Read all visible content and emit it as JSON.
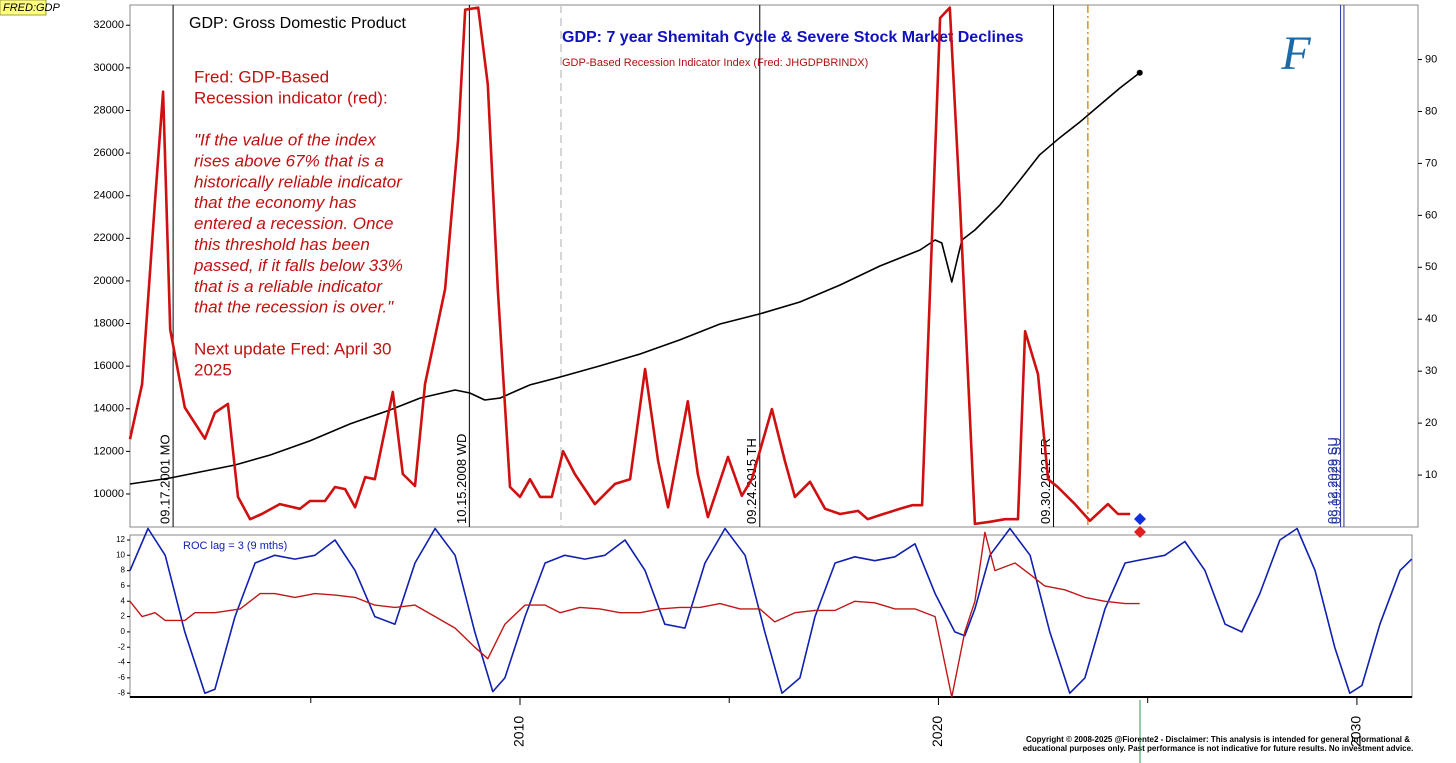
{
  "badge": "FRED:GDP",
  "logo": "F",
  "copyright": [
    "Copyright © 2008-2025 @Fiorente2 - Disclaimer: This analysis is intended for general informational &",
    "educational purposes only. Past performance is not indicative for future results. No investment advice."
  ],
  "chart_data": [
    {
      "type": "line",
      "title": "GDP: 7 year Shemitah Cycle & Severe Stock Market Declines",
      "xlim": [
        2000.68,
        2031.46
      ],
      "ylim": [
        8450,
        32950
      ],
      "yticks": [
        10000,
        12000,
        14000,
        16000,
        18000,
        20000,
        22000,
        24000,
        26000,
        28000,
        30000,
        32000
      ],
      "y2lim": [
        0,
        100.5
      ],
      "y2ticks": [
        10,
        20,
        30,
        40,
        50,
        60,
        70,
        80,
        90
      ],
      "series": [
        {
          "name": "GDP: Gross Domestic Product",
          "color": "#000000",
          "axis": "y",
          "x": [
            2000.68,
            2001.64,
            2002.35,
            2003.19,
            2004.03,
            2004.98,
            2005.94,
            2006.89,
            2007.61,
            2008.45,
            2008.8,
            2009.16,
            2009.52,
            2010.24,
            2010.96,
            2011.91,
            2012.87,
            2013.82,
            2014.78,
            2015.73,
            2016.69,
            2017.65,
            2018.6,
            2019.56,
            2019.92,
            2020.08,
            2020.32,
            2020.56,
            2020.87,
            2021.47,
            2021.95,
            2022.42,
            2022.9,
            2023.38,
            2023.86,
            2024.34,
            2024.81
          ],
          "values": [
            10470,
            10750,
            11030,
            11360,
            11830,
            12490,
            13290,
            13940,
            14500,
            14880,
            14740,
            14410,
            14500,
            15120,
            15490,
            16010,
            16570,
            17230,
            17980,
            18450,
            19010,
            19810,
            20700,
            21450,
            21920,
            21780,
            19950,
            21920,
            22390,
            23570,
            24740,
            25920,
            26720,
            27460,
            28260,
            29060,
            29770
          ]
        },
        {
          "name": "GDP-Based Recession Indicator Index (Fred: JHGDPBRINDX)",
          "color": "#d01010",
          "axis": "y2",
          "x": [
            2000.68,
            2000.97,
            2001.28,
            2001.47,
            2001.64,
            2001.99,
            2002.47,
            2002.71,
            2003.02,
            2003.26,
            2003.55,
            2003.83,
            2004.26,
            2004.74,
            2004.98,
            2005.34,
            2005.58,
            2005.82,
            2006.06,
            2006.3,
            2006.53,
            2006.96,
            2007.2,
            2007.49,
            2007.73,
            2008.21,
            2008.52,
            2008.69,
            2009.0,
            2009.23,
            2009.47,
            2009.76,
            2010.0,
            2010.24,
            2010.48,
            2010.76,
            2011.03,
            2011.31,
            2011.79,
            2012.27,
            2012.63,
            2012.99,
            2013.3,
            2013.54,
            2014.01,
            2014.25,
            2014.49,
            2014.97,
            2015.3,
            2015.54,
            2016.02,
            2016.33,
            2016.57,
            2016.93,
            2017.29,
            2017.65,
            2018.08,
            2018.31,
            2018.6,
            2019.08,
            2019.37,
            2019.61,
            2020.04,
            2020.27,
            2020.51,
            2020.87,
            2021.23,
            2021.59,
            2021.9,
            2022.07,
            2022.38,
            2022.62,
            2022.85,
            2023.26,
            2023.62,
            2024.05,
            2024.29,
            2024.58
          ],
          "values": [
            16.9,
            27.5,
            63,
            83.8,
            38,
            23,
            17,
            22,
            23.7,
            5.8,
            1.5,
            2.5,
            4.4,
            3.5,
            5,
            5,
            7.7,
            7.3,
            3.8,
            9.6,
            9.2,
            26,
            10.2,
            7.9,
            27.5,
            45.8,
            74.6,
            99.6,
            100,
            85.2,
            45.8,
            7.7,
            5.8,
            9.2,
            5.8,
            5.8,
            14.6,
            10.2,
            4.4,
            8.3,
            9.2,
            30.4,
            12.7,
            3.8,
            24.2,
            10.2,
            1.9,
            13.5,
            6,
            9.2,
            22.7,
            12.7,
            5.8,
            8.7,
            3.5,
            2.5,
            3.1,
            1.5,
            2.3,
            3.5,
            4.2,
            4.2,
            98,
            100,
            63,
            0.6,
            1,
            1.5,
            1.5,
            37.7,
            29.4,
            9.2,
            7.7,
            4.4,
            1.2,
            4.4,
            2.5,
            2.5
          ]
        }
      ],
      "events": [
        {
          "x": 2001.71,
          "label": "09.17.2001 MO",
          "color": "#000000"
        },
        {
          "x": 2008.79,
          "label": "10.15.2008 WD",
          "color": "#000000"
        },
        {
          "x": 2015.73,
          "label": "09.24.2015 TH",
          "color": "#000000"
        },
        {
          "x": 2022.75,
          "label": "09.30.2022 FR",
          "color": "#000000"
        },
        {
          "x": 2029.61,
          "label": "08.12.2029 SU",
          "color": "#2030a0"
        },
        {
          "x": 2029.69,
          "label": "09.09.2029 SU",
          "color": "#2030a0"
        }
      ],
      "dashed_lines": [
        {
          "x": 2010.98,
          "color": "#c8c8c8"
        },
        {
          "x": 2023.57,
          "color": "#e09020"
        }
      ],
      "annotations": {
        "heading": [
          "Fred: GDP-Based",
          "Recession indicator (red):"
        ],
        "quote": [
          "\"If the value of the index",
          "rises above 67% that is a",
          "historically reliable indicator",
          "that the economy has",
          "entered a recession. Once",
          "this threshold has been",
          "passed, if it falls below 33%",
          "that is a reliable indicator",
          "that the recession is over.\""
        ],
        "update": [
          "Next update Fred: April 30",
          "2025"
        ]
      }
    },
    {
      "type": "line",
      "xlim": [
        2000.68,
        2031.46
      ],
      "xticks": [
        2010,
        2020,
        2030
      ],
      "xticks_minor": [
        2005,
        2015,
        2025
      ],
      "ylim": [
        -8.5,
        12.65
      ],
      "yticks": [
        12,
        10,
        8,
        6,
        4,
        2,
        0,
        -2,
        -4,
        -6,
        -8
      ],
      "series": [
        {
          "color": "#1020b0",
          "x": [
            2000.68,
            2001.11,
            2001.52,
            2001.99,
            2002.47,
            2002.71,
            2003.19,
            2003.67,
            2004.14,
            2004.62,
            2005.1,
            2005.58,
            2006.06,
            2006.53,
            2007.01,
            2007.49,
            2007.97,
            2008.45,
            2008.92,
            2009.35,
            2009.64,
            2010.12,
            2010.6,
            2011.07,
            2011.55,
            2012.03,
            2012.51,
            2012.99,
            2013.46,
            2013.94,
            2014.42,
            2014.9,
            2015.38,
            2015.85,
            2016.26,
            2016.69,
            2017.05,
            2017.53,
            2018.0,
            2018.48,
            2018.96,
            2019.44,
            2019.92,
            2020.39,
            2020.63,
            2020.87,
            2021.23,
            2021.71,
            2022.19,
            2022.66,
            2023.14,
            2023.5,
            2023.98,
            2024.46,
            2024.93,
            2025.41,
            2025.89,
            2026.37,
            2026.85,
            2027.25,
            2027.68,
            2028.16,
            2028.57,
            2029.0,
            2029.47,
            2029.83,
            2030.12,
            2030.55,
            2031.03,
            2031.31
          ],
          "values": [
            8,
            13.5,
            10,
            0,
            -8,
            -7.5,
            2,
            9,
            10,
            9.5,
            10,
            12,
            8,
            2,
            1,
            9,
            13.5,
            10,
            0,
            -7.8,
            -6,
            2,
            9,
            10,
            9.5,
            10,
            12,
            8,
            1,
            0.5,
            9,
            13.5,
            10,
            0,
            -8,
            -6,
            2,
            9,
            9.8,
            9.3,
            9.8,
            11.5,
            5,
            0,
            -0.5,
            3,
            10,
            13.5,
            10,
            0,
            -8,
            -6,
            3,
            9,
            9.5,
            10,
            11.8,
            8,
            1,
            0,
            5,
            12,
            13.5,
            8,
            -2,
            -8,
            -7,
            1,
            8,
            9.5
          ]
        },
        {
          "name": "ROC lag = 3 (9 mths)",
          "color": "#c01818",
          "x": [
            2000.68,
            2000.97,
            2001.28,
            2001.52,
            2001.99,
            2002.23,
            2002.71,
            2003.31,
            2003.79,
            2004.14,
            2004.62,
            2005.1,
            2005.58,
            2006.06,
            2006.53,
            2007.01,
            2007.49,
            2007.97,
            2008.45,
            2008.92,
            2009.23,
            2009.64,
            2010.12,
            2010.6,
            2010.96,
            2011.43,
            2011.91,
            2012.39,
            2012.87,
            2013.34,
            2013.82,
            2014.3,
            2014.78,
            2015.26,
            2015.73,
            2016.09,
            2016.57,
            2017.05,
            2017.53,
            2018.0,
            2018.48,
            2018.96,
            2019.44,
            2019.92,
            2020.32,
            2020.63,
            2020.87,
            2021.11,
            2021.35,
            2021.83,
            2022.19,
            2022.54,
            2023.02,
            2023.5,
            2023.98,
            2024.46,
            2024.81
          ],
          "values": [
            4,
            2,
            2.5,
            1.5,
            1.5,
            2.5,
            2.5,
            3,
            5,
            5,
            4.5,
            5,
            4.8,
            4.5,
            3.5,
            3.2,
            3.5,
            2,
            0.5,
            -2,
            -3.5,
            1,
            3.5,
            3.5,
            2.5,
            3.2,
            3,
            2.5,
            2.5,
            3,
            3.2,
            3.2,
            3.7,
            3,
            3,
            1.3,
            2.5,
            2.8,
            2.8,
            4,
            3.8,
            3,
            3,
            2,
            -8.5,
            0,
            4,
            13,
            8,
            9,
            7.5,
            6,
            5.5,
            4.5,
            4,
            3.7,
            3.7
          ]
        }
      ]
    }
  ]
}
